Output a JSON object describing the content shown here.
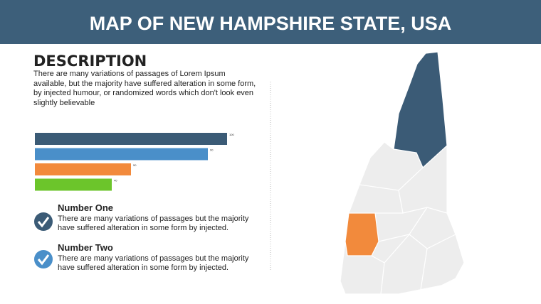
{
  "header": {
    "title": "MAP OF NEW HAMPSHIRE STATE, USA"
  },
  "description": {
    "heading": "DESCRIPTION",
    "text": [
      "There are many variations of passages of Lorem Ipsum available, but the majority have suffered alteration in some form, by injected humour, or randomized words which don't look even",
      "slightly believable"
    ]
  },
  "chart_data": {
    "type": "bar",
    "orientation": "horizontal",
    "categories": [
      null,
      null,
      null,
      null
    ],
    "values": [
      100,
      90,
      50,
      40
    ],
    "colors": [
      "#3b5b76",
      "#4a8fc9",
      "#f28a3c",
      "#6cc52b"
    ],
    "xlim": [
      0,
      100
    ]
  },
  "items": [
    {
      "title": "Number One",
      "text": "There are many variations of passages but the majority have  suffered alteration in some form by injected."
    },
    {
      "title": "Number Two",
      "text": "There are many variations of passages but the majority have  suffered alteration in some form by injected."
    }
  ]
}
